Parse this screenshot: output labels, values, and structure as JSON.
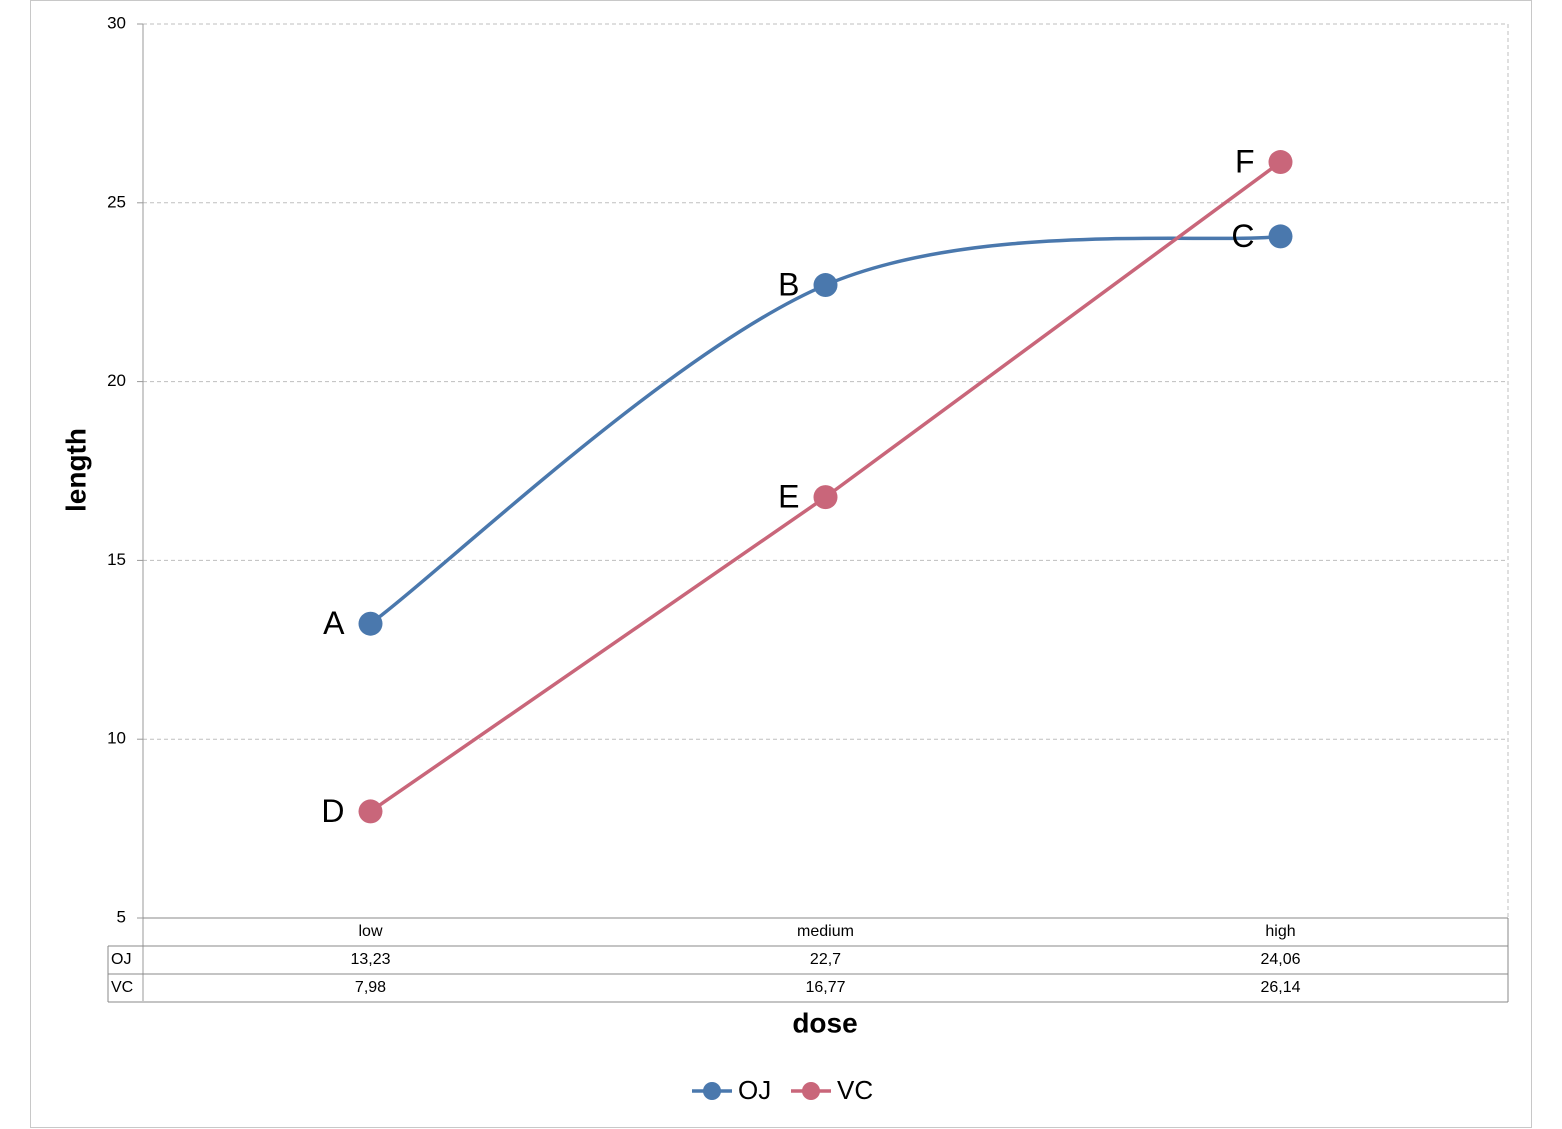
{
  "chart_data": {
    "type": "line",
    "x_label": "dose",
    "y_label": "length",
    "categories": [
      "low",
      "medium",
      "high"
    ],
    "series": [
      {
        "name": "OJ",
        "color": "#4a78ad",
        "smooth": true,
        "values": [
          13.23,
          22.7,
          24.06
        ],
        "value_labels": [
          "13,23",
          "22,7",
          "24,06"
        ],
        "point_labels": [
          "A",
          "B",
          "C"
        ]
      },
      {
        "name": "VC",
        "color": "#c9667a",
        "smooth": false,
        "values": [
          7.98,
          16.77,
          26.14
        ],
        "value_labels": [
          "7,98",
          "16,77",
          "26,14"
        ],
        "point_labels": [
          "D",
          "E",
          "F"
        ]
      }
    ],
    "ylim": [
      5,
      30
    ],
    "yticks": [
      5,
      10,
      15,
      20,
      25,
      30
    ],
    "grid": true,
    "legend": "bottom"
  }
}
